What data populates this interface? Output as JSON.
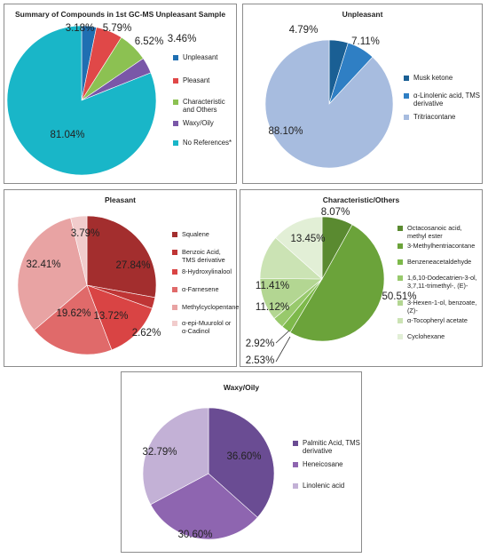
{
  "chart_data": [
    {
      "type": "pie",
      "title": "Summary of Compounds in 1st GC-MS Unpleasant Sample",
      "legend_position": "right",
      "labels": [
        "Unpleasant",
        "Pleasant",
        "Characteristic and Others",
        "Waxy/Oily",
        "No References*"
      ],
      "values": [
        3.18,
        5.79,
        6.52,
        3.46,
        81.04
      ],
      "data_labels": [
        "3.18%",
        "5.79%",
        "6.52%",
        "3.46%",
        "81.04%"
      ],
      "colors": [
        "#1f6fb2",
        "#e04848",
        "#8cc152",
        "#7a57a8",
        "#19b6c8"
      ]
    },
    {
      "type": "pie",
      "title": "Unpleasant",
      "legend_position": "right",
      "labels": [
        "Musk ketone",
        "α-Linolenic acid, TMS derivative",
        "Tritriacontane"
      ],
      "values": [
        4.79,
        7.11,
        88.1
      ],
      "data_labels": [
        "4.79%",
        "7.11%",
        "88.10%"
      ],
      "colors": [
        "#1a5f94",
        "#2f7fc4",
        "#a7bcdf"
      ]
    },
    {
      "type": "pie",
      "title": "Pleasant",
      "legend_position": "right",
      "labels": [
        "Squalene",
        "Benzoic Acid, TMS derivative",
        "8-Hydroxylinalool",
        "α-Farnesene",
        "Methylcyclopentane",
        "α-epi-Muurolol or α-Cadinol"
      ],
      "values": [
        27.84,
        2.62,
        13.72,
        19.62,
        32.41,
        3.79
      ],
      "data_labels": [
        "27.84%",
        "2.62%",
        "13.72%",
        "19.62%",
        "32.41%",
        "3.79%"
      ],
      "colors": [
        "#a32e2e",
        "#bf3535",
        "#d94444",
        "#e06a6a",
        "#e8a3a3",
        "#f1cccc"
      ]
    },
    {
      "type": "pie",
      "title": "Characteristic/Others",
      "legend_position": "right",
      "labels": [
        "Octacosanoic acid, methyl ester",
        "3-Methylhentriacontane",
        "Benzeneacetaldehyde",
        "1,6,10-Dodecatrien-3-ol, 3,7,11-trimethyl-, (E)-",
        "3-Hexen-1-ol, benzoate, (Z)-",
        "α-Tocopheryl acetate",
        "Cyclohexane"
      ],
      "values": [
        8.07,
        50.51,
        2.53,
        2.92,
        11.12,
        11.41,
        13.45
      ],
      "data_labels": [
        "8.07%",
        "50.51%",
        "2.53%",
        "2.92%",
        "11.12%",
        "11.41%",
        "13.45%"
      ],
      "colors": [
        "#5a8a30",
        "#6ba33a",
        "#7db94a",
        "#98c96c",
        "#b3d692",
        "#cbe3b4",
        "#e2efd6"
      ]
    },
    {
      "type": "pie",
      "title": "Waxy/Oily",
      "legend_position": "right",
      "labels": [
        "Palmitic Acid, TMS derivative",
        "Heneicosane",
        "Linolenic acid"
      ],
      "values": [
        36.6,
        30.6,
        32.79
      ],
      "data_labels": [
        "36.60%",
        "30.60%",
        "32.79%"
      ],
      "colors": [
        "#6a4c93",
        "#8e65b0",
        "#c3b1d6"
      ]
    }
  ]
}
